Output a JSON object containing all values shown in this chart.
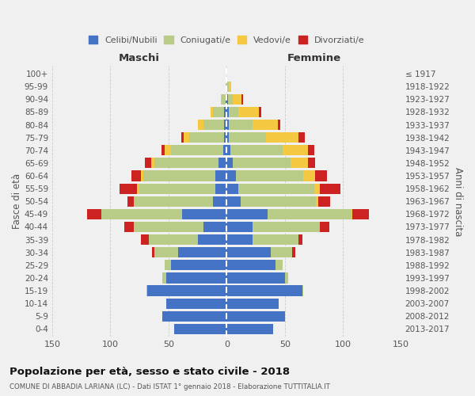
{
  "age_groups": [
    "0-4",
    "5-9",
    "10-14",
    "15-19",
    "20-24",
    "25-29",
    "30-34",
    "35-39",
    "40-44",
    "45-49",
    "50-54",
    "55-59",
    "60-64",
    "65-69",
    "70-74",
    "75-79",
    "80-84",
    "85-89",
    "90-94",
    "95-99",
    "100+"
  ],
  "birth_years": [
    "2013-2017",
    "2008-2012",
    "2003-2007",
    "1998-2002",
    "1993-1997",
    "1988-1992",
    "1983-1987",
    "1978-1982",
    "1973-1977",
    "1968-1972",
    "1963-1967",
    "1958-1962",
    "1953-1957",
    "1948-1952",
    "1943-1947",
    "1938-1942",
    "1933-1937",
    "1928-1932",
    "1923-1927",
    "1918-1922",
    "≤ 1917"
  ],
  "male": {
    "celibi": [
      45,
      55,
      52,
      68,
      52,
      48,
      42,
      25,
      20,
      38,
      12,
      10,
      10,
      7,
      3,
      2,
      2,
      2,
      1,
      0,
      0
    ],
    "coniugati": [
      0,
      0,
      0,
      1,
      3,
      5,
      20,
      42,
      60,
      70,
      68,
      65,
      62,
      55,
      45,
      30,
      18,
      10,
      3,
      1,
      0
    ],
    "vedovi": [
      0,
      0,
      0,
      0,
      0,
      0,
      0,
      0,
      0,
      0,
      0,
      2,
      2,
      3,
      5,
      5,
      5,
      2,
      1,
      0,
      0
    ],
    "divorziati": [
      0,
      0,
      0,
      0,
      0,
      0,
      2,
      7,
      8,
      12,
      5,
      15,
      8,
      5,
      3,
      2,
      0,
      0,
      0,
      0,
      0
    ]
  },
  "female": {
    "nubili": [
      40,
      50,
      45,
      65,
      50,
      42,
      38,
      22,
      22,
      35,
      12,
      10,
      8,
      5,
      3,
      2,
      2,
      2,
      1,
      0,
      0
    ],
    "coniugate": [
      0,
      0,
      0,
      1,
      3,
      6,
      18,
      40,
      58,
      72,
      65,
      65,
      58,
      50,
      45,
      32,
      20,
      8,
      4,
      2,
      0
    ],
    "vedove": [
      0,
      0,
      0,
      0,
      0,
      0,
      0,
      0,
      0,
      1,
      2,
      5,
      10,
      15,
      22,
      28,
      22,
      18,
      8,
      2,
      0
    ],
    "divorziate": [
      0,
      0,
      0,
      0,
      0,
      0,
      3,
      3,
      8,
      14,
      10,
      18,
      10,
      6,
      5,
      5,
      2,
      2,
      1,
      0,
      0
    ]
  },
  "colors": {
    "celibi_nubili": "#4472C4",
    "coniugati_e": "#B8CC88",
    "vedovi_e": "#F5C842",
    "divorziati_e": "#CC2222"
  },
  "xlim": 150,
  "title": "Popolazione per età, sesso e stato civile - 2018",
  "subtitle": "COMUNE DI ABBADIA LARIANA (LC) - Dati ISTAT 1° gennaio 2018 - Elaborazione TUTTITALIA.IT",
  "ylabel": "Fasce di età",
  "ylabel_right": "Anni di nascita",
  "label_maschi": "Maschi",
  "label_femmine": "Femmine",
  "legend_labels": [
    "Celibi/Nubili",
    "Coniugati/e",
    "Vedovi/e",
    "Divorziati/e"
  ],
  "background_color": "#f0f0f0",
  "grid_color": "#cccccc"
}
